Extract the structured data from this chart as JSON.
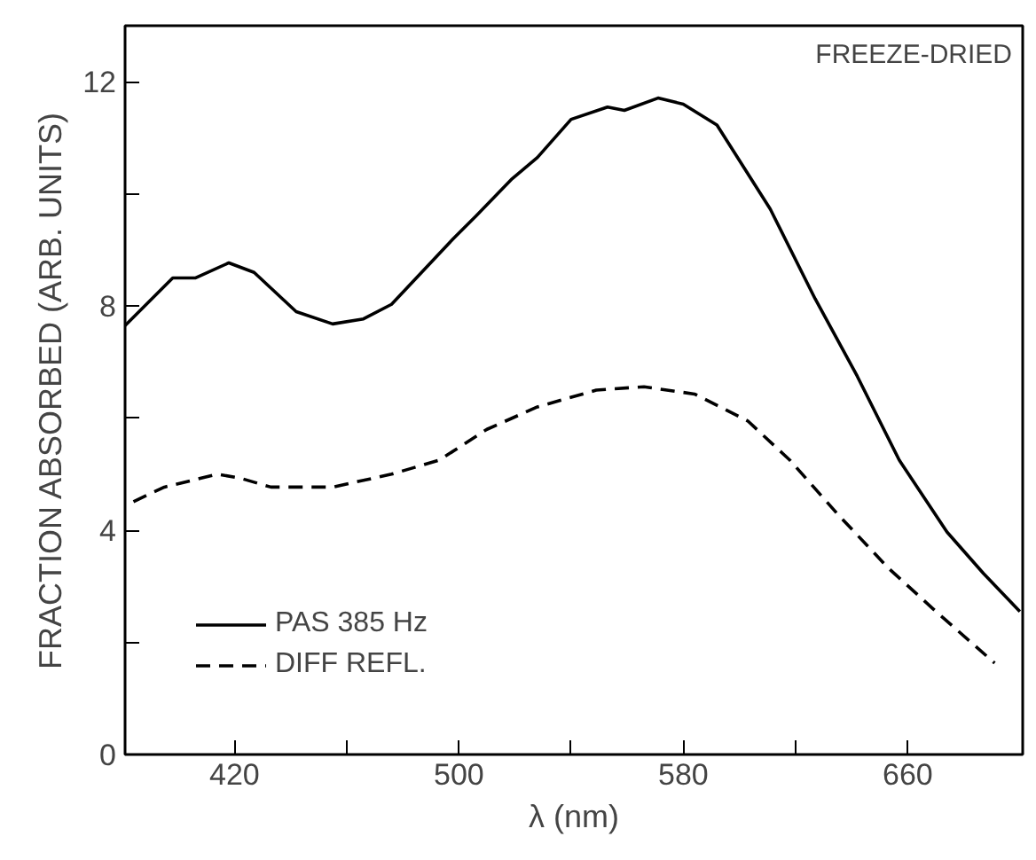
{
  "chart_data": {
    "type": "line",
    "xlabel": "λ (nm)",
    "ylabel": "FRACTION ABSORBED (ARB. UNITS)",
    "annotations": [
      "FREEZE-DRIED"
    ],
    "xlim": [
      381,
      701
    ],
    "ylim": [
      0,
      13
    ],
    "xticks": [
      420,
      {
        "value": 460,
        "label": null
      },
      500,
      {
        "value": 540,
        "label": null
      },
      580,
      {
        "value": 620,
        "label": null
      },
      660
    ],
    "yticks": [
      0,
      {
        "value": 2,
        "label": null
      },
      4,
      {
        "value": 6,
        "label": null
      },
      8,
      {
        "value": 10,
        "label": null
      },
      12
    ],
    "grid": false,
    "legend": "bottom left",
    "series": [
      {
        "name": "PAS 385 Hz",
        "color": "#000000",
        "line_style": "solid",
        "x": [
          381,
          398,
          406,
          418,
          427,
          442,
          455,
          466,
          476,
          498,
          506,
          519,
          528,
          540,
          553,
          559,
          571,
          580,
          592,
          611,
          627,
          642,
          657,
          674,
          687,
          700
        ],
        "values": [
          7.65,
          8.5,
          8.5,
          8.77,
          8.6,
          7.9,
          7.68,
          7.77,
          8.03,
          9.2,
          9.6,
          10.27,
          10.65,
          11.33,
          11.55,
          11.49,
          11.71,
          11.6,
          11.23,
          9.73,
          8.13,
          6.75,
          5.25,
          3.97,
          3.23,
          2.55
        ]
      },
      {
        "name": "DIFF REFL.",
        "color": "#000000",
        "line_style": "dashed",
        "x": [
          384,
          395,
          414,
          422,
          433,
          455,
          476,
          493,
          510,
          528,
          549,
          566,
          584,
          603,
          618,
          635,
          653,
          669,
          691
        ],
        "values": [
          4.51,
          4.77,
          5.0,
          4.93,
          4.77,
          4.77,
          5.0,
          5.25,
          5.8,
          6.2,
          6.5,
          6.56,
          6.43,
          5.95,
          5.25,
          4.29,
          3.33,
          2.6,
          1.63
        ]
      }
    ]
  }
}
